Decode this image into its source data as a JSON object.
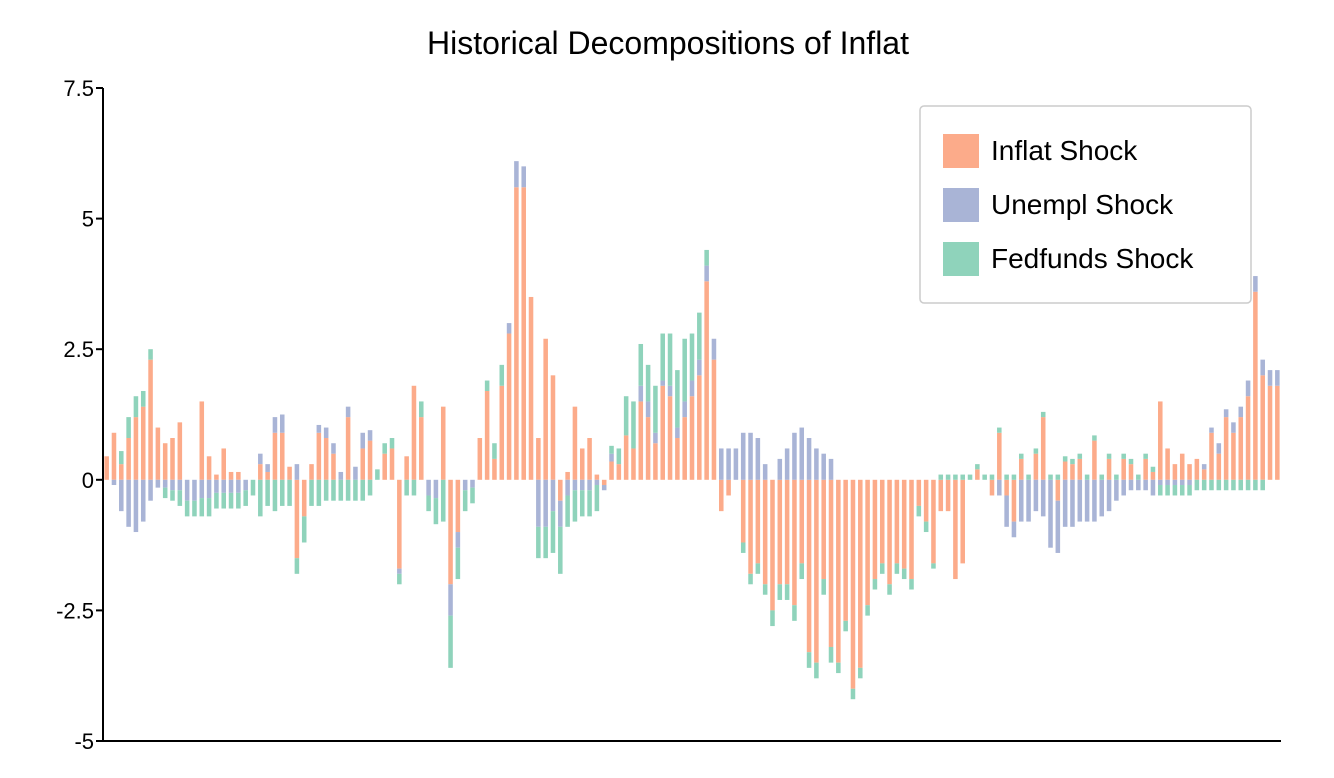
{
  "chart_data": {
    "type": "bar",
    "stacked": true,
    "title": "Historical Decompositions of Inflat",
    "xlabel": "",
    "ylabel": "",
    "ylim": [
      -5,
      7.5
    ],
    "yticks": [
      {
        "value": -5,
        "label": "-5"
      },
      {
        "value": -2.5,
        "label": "-2.5"
      },
      {
        "value": 0,
        "label": "0"
      },
      {
        "value": 2.5,
        "label": "2.5"
      },
      {
        "value": 5,
        "label": "5"
      },
      {
        "value": 7.5,
        "label": "7.5"
      }
    ],
    "grid": false,
    "legend_position": "top-right",
    "series": [
      {
        "name": "Inflat Shock",
        "color": "#fcab8a",
        "values": [
          0.45,
          0.9,
          0.3,
          0.8,
          1.2,
          1.4,
          2.3,
          1.0,
          0.7,
          0.8,
          1.1,
          0.0,
          0.0,
          1.5,
          0.45,
          0.1,
          0.6,
          0.15,
          0.15,
          0.0,
          0.0,
          0.3,
          0.15,
          0.9,
          0.9,
          0.25,
          -1.5,
          -0.7,
          0.3,
          0.9,
          0.8,
          0.5,
          0.0,
          1.2,
          0.0,
          0.6,
          0.75,
          0.0,
          0.5,
          0.6,
          -1.7,
          0.45,
          1.8,
          1.2,
          0.0,
          0.0,
          1.4,
          -2.0,
          -1.0,
          0.0,
          0.0,
          0.8,
          1.7,
          0.4,
          1.8,
          2.8,
          5.6,
          5.6,
          3.5,
          0.8,
          2.7,
          2.0,
          -0.4,
          0.15,
          1.4,
          0.6,
          0.8,
          0.1,
          -0.1,
          0.35,
          0.3,
          0.85,
          0.6,
          1.5,
          1.2,
          0.7,
          1.8,
          1.6,
          0.8,
          1.2,
          1.6,
          2.0,
          3.8,
          2.3,
          -0.6,
          -0.3,
          0.0,
          -1.2,
          -1.8,
          -1.6,
          -2.0,
          -2.5,
          -2.0,
          -2.0,
          -2.4,
          -1.6,
          -3.3,
          -3.5,
          -1.9,
          -3.2,
          -3.5,
          -2.7,
          -4.0,
          -3.6,
          -2.4,
          -1.9,
          -1.6,
          -2.0,
          -1.6,
          -1.7,
          -1.9,
          -0.5,
          -0.8,
          -1.6,
          -0.6,
          -0.6,
          -1.9,
          -1.6,
          0.0,
          0.2,
          0.0,
          -0.3,
          0.9,
          -0.3,
          -0.8,
          0.4,
          0.0,
          0.5,
          1.2,
          0.0,
          -0.4,
          0.35,
          0.3,
          0.4,
          0.0,
          0.75,
          0.0,
          0.4,
          0.0,
          0.4,
          0.3,
          0.0,
          0.4,
          0.15,
          1.5,
          0.6,
          0.3,
          0.5,
          0.3,
          0.4,
          0.2,
          0.9,
          0.5,
          1.2,
          0.9,
          1.2,
          1.6,
          3.6,
          2.0,
          1.8,
          1.8
        ]
      },
      {
        "name": "Unempl Shock",
        "color": "#a9b4d6",
        "values": [
          0.0,
          -0.1,
          -0.6,
          -0.9,
          -1.0,
          -0.8,
          -0.4,
          -0.15,
          -0.15,
          -0.2,
          -0.2,
          -0.4,
          -0.4,
          -0.35,
          -0.35,
          -0.25,
          -0.25,
          -0.25,
          -0.25,
          -0.2,
          0.0,
          0.2,
          0.15,
          0.3,
          0.35,
          0.0,
          0.3,
          0.0,
          0.0,
          0.15,
          0.2,
          0.2,
          0.15,
          0.2,
          0.25,
          0.3,
          0.2,
          0.0,
          0.0,
          0.0,
          -0.1,
          0.0,
          0.0,
          0.0,
          -0.3,
          -0.35,
          0.0,
          -0.6,
          -0.3,
          -0.2,
          -0.15,
          0.0,
          0.0,
          0.0,
          0.0,
          0.2,
          0.5,
          0.4,
          0.0,
          -0.9,
          -0.9,
          -0.6,
          -0.5,
          -0.3,
          -0.2,
          -0.2,
          -0.2,
          -0.1,
          -0.1,
          0.15,
          0.0,
          0.0,
          0.0,
          0.3,
          0.3,
          0.2,
          0.1,
          0.2,
          0.2,
          0.3,
          0.3,
          0.3,
          0.3,
          0.4,
          0.6,
          0.6,
          0.6,
          0.9,
          0.9,
          0.8,
          0.3,
          0.0,
          0.4,
          0.6,
          0.9,
          1.0,
          0.8,
          0.6,
          0.5,
          0.4,
          0.0,
          0.0,
          0.0,
          0.0,
          0.0,
          0.0,
          0.0,
          0.0,
          0.0,
          0.0,
          0.0,
          0.0,
          0.0,
          0.0,
          0.0,
          0.0,
          0.0,
          0.0,
          0.0,
          0.0,
          0.0,
          0.0,
          -0.3,
          -0.6,
          -0.3,
          -0.8,
          -0.8,
          -0.6,
          -0.7,
          -1.3,
          -1.0,
          -0.9,
          -0.9,
          -0.8,
          -0.8,
          -0.8,
          -0.7,
          -0.6,
          -0.4,
          -0.3,
          -0.2,
          -0.2,
          -0.2,
          -0.3,
          -0.1,
          -0.1,
          -0.1,
          -0.1,
          -0.1,
          0.0,
          0.1,
          0.1,
          0.2,
          0.15,
          0.2,
          0.2,
          0.3,
          0.3,
          0.3,
          0.3,
          0.3,
          0.4,
          0.5,
          0.4
        ]
      },
      {
        "name": "Fedfunds Shock",
        "color": "#8fd3bb",
        "values": [
          0.0,
          0.0,
          0.25,
          0.4,
          0.4,
          0.3,
          0.2,
          0.0,
          -0.2,
          -0.2,
          -0.3,
          -0.3,
          -0.3,
          -0.35,
          -0.35,
          -0.3,
          -0.3,
          -0.3,
          -0.3,
          -0.3,
          -0.3,
          -0.7,
          -0.5,
          -0.6,
          -0.5,
          -0.5,
          -0.3,
          -0.5,
          -0.5,
          -0.5,
          -0.4,
          -0.4,
          -0.4,
          -0.4,
          -0.4,
          -0.4,
          -0.3,
          0.2,
          0.2,
          0.2,
          -0.2,
          -0.3,
          -0.3,
          0.3,
          -0.3,
          -0.5,
          -0.8,
          -1.0,
          -0.6,
          -0.4,
          -0.3,
          0.0,
          0.2,
          0.3,
          0.4,
          0.0,
          0.0,
          0.0,
          0.0,
          -0.6,
          -0.6,
          -0.8,
          -0.9,
          -0.6,
          -0.6,
          -0.5,
          -0.5,
          -0.5,
          0.0,
          0.15,
          0.3,
          0.75,
          0.9,
          0.8,
          0.7,
          0.9,
          0.9,
          1.0,
          1.1,
          1.2,
          0.9,
          0.9,
          0.3,
          0.0,
          0.0,
          0.0,
          0.0,
          -0.2,
          -0.2,
          -0.2,
          -0.2,
          -0.3,
          -0.3,
          -0.3,
          -0.3,
          -0.3,
          -0.3,
          -0.3,
          -0.3,
          -0.3,
          -0.2,
          -0.2,
          -0.2,
          -0.2,
          -0.2,
          -0.2,
          -0.2,
          -0.2,
          -0.2,
          -0.2,
          -0.2,
          -0.2,
          -0.2,
          -0.1,
          0.1,
          0.1,
          0.1,
          0.1,
          0.1,
          0.1,
          0.1,
          0.1,
          0.1,
          0.1,
          0.1,
          0.1,
          0.1,
          0.1,
          0.1,
          0.1,
          0.1,
          0.1,
          0.1,
          0.1,
          0.1,
          0.1,
          0.1,
          0.1,
          0.1,
          0.1,
          0.1,
          0.1,
          0.1,
          0.1,
          -0.2,
          -0.2,
          -0.2,
          -0.2,
          -0.2,
          -0.2,
          -0.2,
          -0.2,
          -0.2,
          -0.2,
          -0.2,
          -0.2,
          -0.2,
          -0.2,
          -0.2,
          0.0,
          0.0,
          0.0,
          0.1,
          0.1
        ]
      }
    ]
  }
}
